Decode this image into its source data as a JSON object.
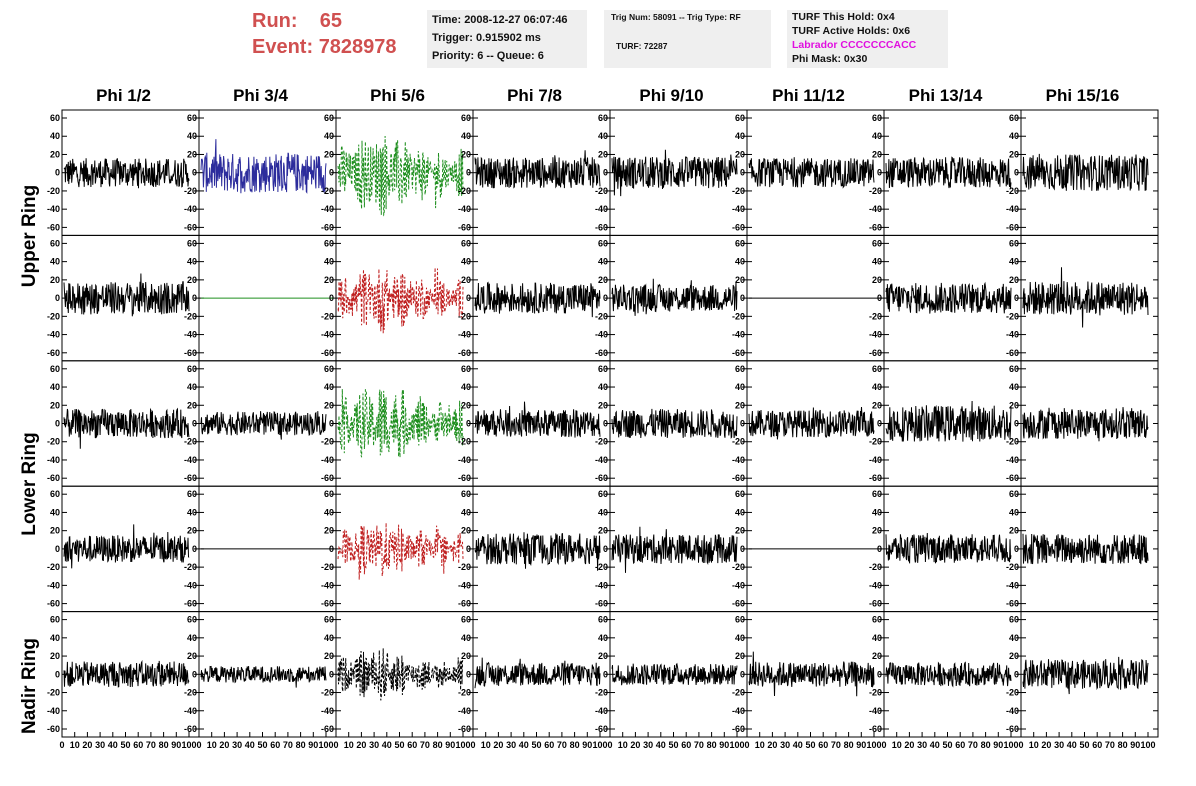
{
  "header": {
    "run_label": "Run:",
    "run_value": "65",
    "event_label": "Event:",
    "event_value": "7828978"
  },
  "info_time": {
    "time": "Time: 2008-12-27 06:07:46",
    "trigger": "Trigger: 0.915902 ms",
    "priority": "Priority: 6 -- Queue: 6"
  },
  "info_trig": {
    "trig_line": "Trig Num: 58091 -- Trig Type: RF",
    "turf_line": "TURF: 72287"
  },
  "info_turf": {
    "this_hold": "TURF This Hold: 0x4",
    "active_holds": "TURF Active Holds: 0x6",
    "labrador": "Labrador CCCCCCCACC",
    "phi_mask": "Phi Mask: 0x30"
  },
  "columns": [
    "Phi 1/2",
    "Phi 3/4",
    "Phi 5/6",
    "Phi 7/8",
    "Phi 9/10",
    "Phi 11/12",
    "Phi 13/14",
    "Phi 15/16"
  ],
  "rings": [
    "Upper Ring",
    "Lower Ring",
    "Nadir Ring"
  ],
  "colors": {
    "header_red": "#d05050",
    "magenta": "#e010e0",
    "black": "#000000",
    "blue": "#2c2c9c",
    "green": "#1f8f1f",
    "red": "#c02020"
  },
  "chart_data": {
    "type": "line",
    "layout": "grid of waveform panels, 5 rows x 8 columns",
    "ylim": [
      -60,
      60
    ],
    "yticks": [
      -60,
      -40,
      -20,
      0,
      20,
      40,
      60
    ],
    "xlim": [
      0,
      100
    ],
    "xtick_labels": [
      "0",
      "10",
      "20",
      "30",
      "40",
      "50",
      "60",
      "70",
      "80",
      "90",
      "100"
    ],
    "panel_rows": [
      {
        "ring": "Upper Ring",
        "styles": [
          "black",
          "blue",
          "green-dashed",
          "black",
          "black",
          "black",
          "black",
          "black"
        ],
        "amplitudes": [
          16,
          22,
          35,
          17,
          18,
          16,
          17,
          20
        ]
      },
      {
        "ring": "Upper Ring",
        "styles": [
          "black",
          "green-flat",
          "red-dashed",
          "black",
          "black",
          "black-flat",
          "black",
          "black"
        ],
        "amplitudes": [
          18,
          0,
          28,
          17,
          15,
          0,
          17,
          19
        ]
      },
      {
        "ring": "Lower Ring",
        "styles": [
          "black",
          "black",
          "green-dashed",
          "black",
          "black",
          "black",
          "black",
          "black"
        ],
        "amplitudes": [
          16,
          13,
          33,
          15,
          16,
          15,
          20,
          17
        ]
      },
      {
        "ring": "Lower Ring",
        "styles": [
          "black",
          "black-flat",
          "red-dashed",
          "black",
          "black",
          "black-flat",
          "black",
          "black"
        ],
        "amplitudes": [
          15,
          0,
          24,
          17,
          16,
          0,
          16,
          17
        ]
      },
      {
        "ring": "Nadir Ring",
        "styles": [
          "black",
          "black",
          "black-dashed",
          "black",
          "black",
          "black",
          "black",
          "black"
        ],
        "amplitudes": [
          14,
          9,
          22,
          13,
          12,
          14,
          13,
          16
        ]
      }
    ]
  }
}
